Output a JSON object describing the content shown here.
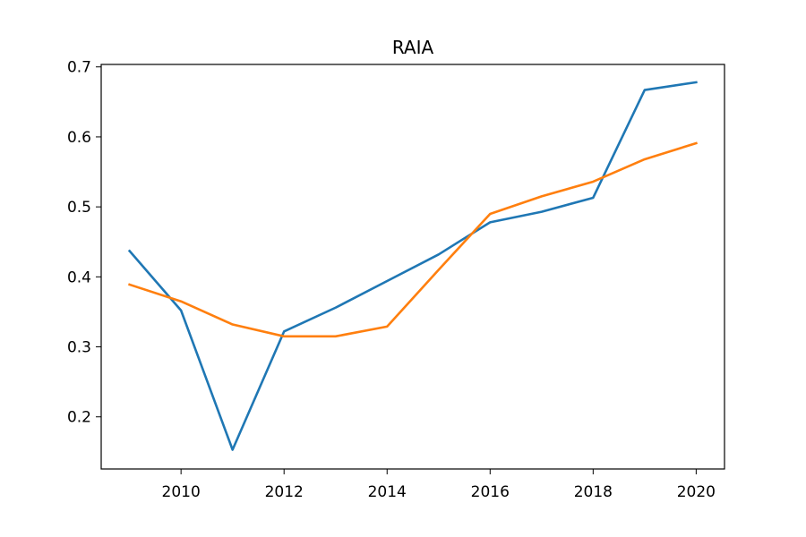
{
  "chart_data": {
    "type": "line",
    "title": "RAIA",
    "xlabel": "",
    "ylabel": "",
    "x": [
      2009,
      2010,
      2011,
      2012,
      2013,
      2014,
      2015,
      2016,
      2017,
      2018,
      2019,
      2020
    ],
    "xlim": [
      2008.45,
      2020.55
    ],
    "ylim": [
      0.1255,
      0.7035
    ],
    "x_ticks": [
      2010,
      2012,
      2014,
      2016,
      2018,
      2020
    ],
    "y_ticks": [
      0.2,
      0.3,
      0.4,
      0.5,
      0.6,
      0.7
    ],
    "grid": false,
    "series": [
      {
        "color": "#1f77b4",
        "values": [
          0.437,
          0.352,
          0.153,
          0.322,
          0.356,
          0.394,
          0.432,
          0.478,
          0.493,
          0.513,
          0.667,
          0.678
        ]
      },
      {
        "color": "#ff7f0e",
        "values": [
          0.389,
          0.365,
          0.332,
          0.315,
          0.315,
          0.329,
          0.41,
          0.49,
          0.515,
          0.536,
          0.568,
          0.591
        ]
      }
    ]
  }
}
